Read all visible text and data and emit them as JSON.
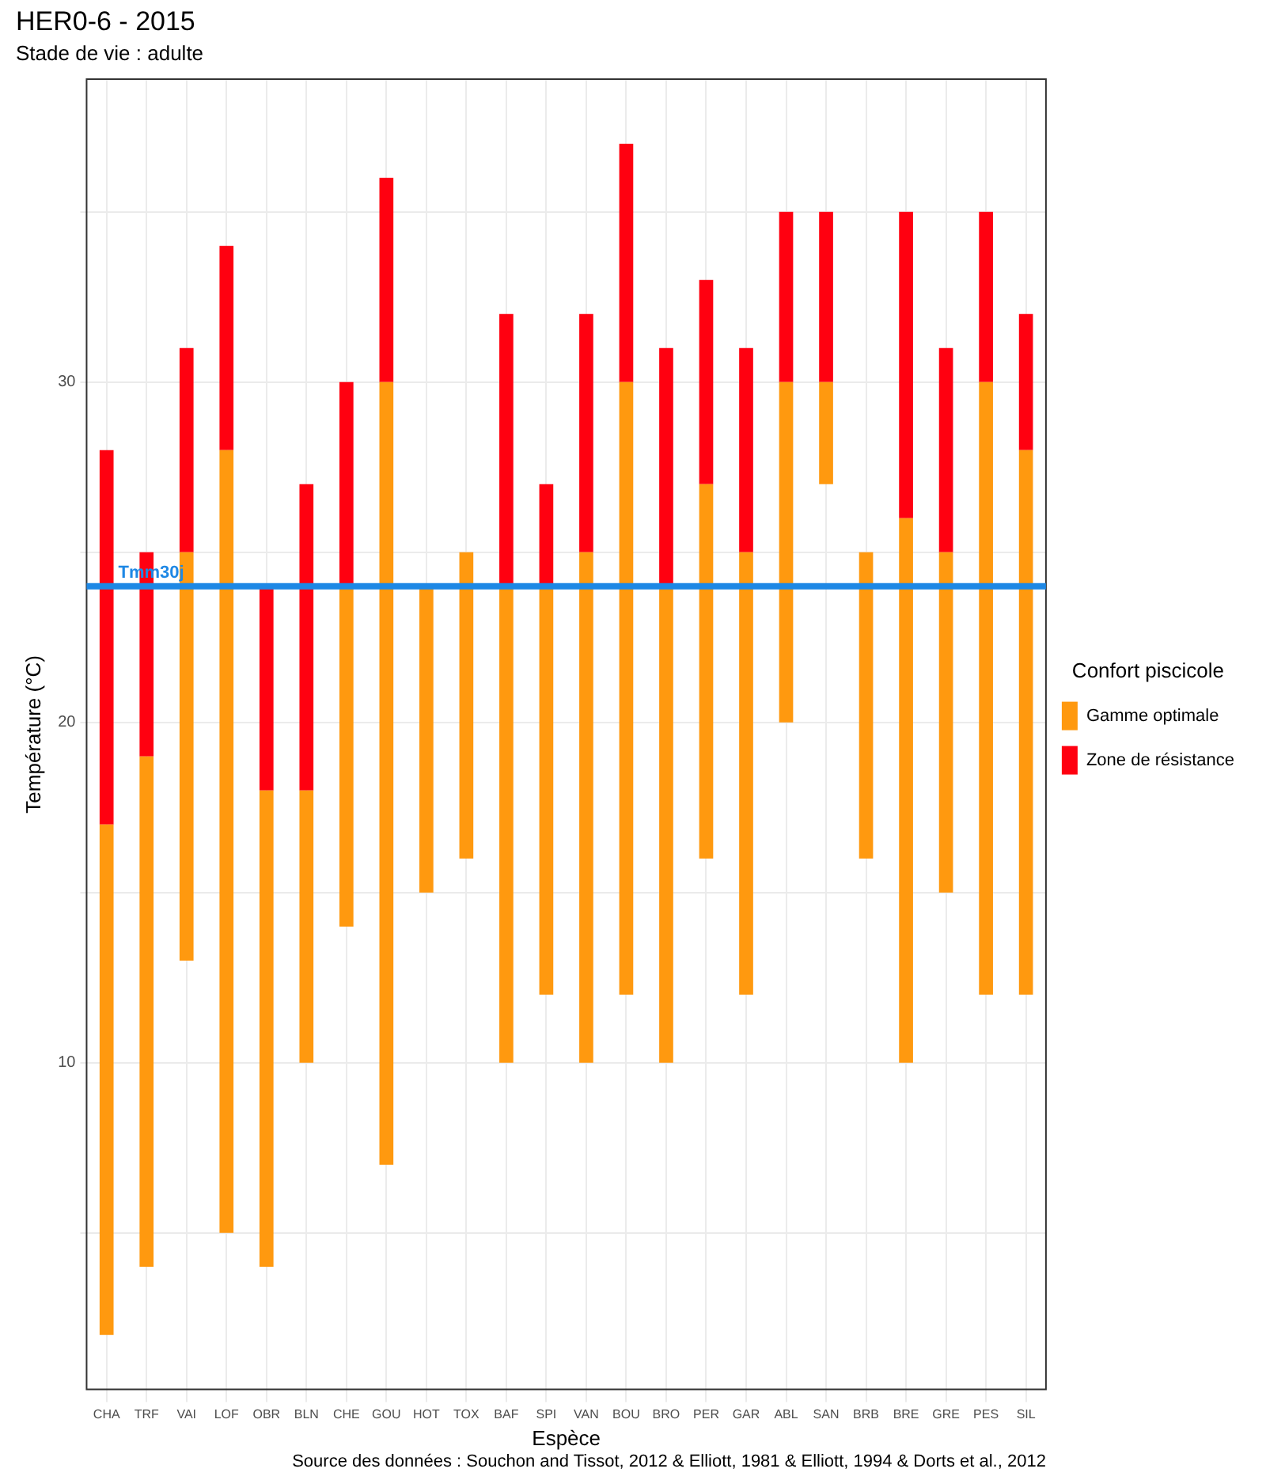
{
  "chart_data": {
    "type": "bar",
    "title": "HER0-6 - 2015",
    "subtitle": "Stade de vie : adulte",
    "xlabel": "Espèce",
    "ylabel": "Température (°C)",
    "legend_title": "Confort piscicole",
    "categories": [
      "CHA",
      "TRF",
      "VAI",
      "LOF",
      "OBR",
      "BLN",
      "CHE",
      "GOU",
      "HOT",
      "TOX",
      "BAF",
      "SPI",
      "VAN",
      "BOU",
      "BRO",
      "PER",
      "GAR",
      "ABL",
      "SAN",
      "BRB",
      "BRE",
      "GRE",
      "PES",
      "SIL"
    ],
    "series": [
      {
        "name": "Gamme optimale",
        "color": "#ff990f",
        "base": [
          2,
          4,
          13,
          5,
          4,
          10,
          14,
          7,
          15,
          16,
          10,
          12,
          10,
          12,
          10,
          16,
          12,
          20,
          27,
          16,
          10,
          15,
          12,
          12
        ],
        "values": [
          15,
          15,
          12,
          23,
          14,
          8,
          10,
          23,
          9,
          9,
          14,
          12,
          15,
          18,
          14,
          11,
          13,
          10,
          3,
          9,
          16,
          10,
          18,
          16
        ]
      },
      {
        "name": "Zone de résistance",
        "color": "#ff0010",
        "base": [
          17,
          19,
          25,
          28,
          18,
          18,
          24,
          30,
          null,
          null,
          24,
          24,
          25,
          30,
          24,
          27,
          25,
          30,
          30,
          null,
          26,
          25,
          30,
          28
        ],
        "values": [
          11,
          6,
          6,
          6,
          6,
          9,
          6,
          6,
          null,
          null,
          8,
          3,
          7,
          7,
          7,
          6,
          6,
          5,
          5,
          null,
          9,
          6,
          5,
          4
        ]
      }
    ],
    "ylim": [
      0.4,
      38.9
    ],
    "yticks": [
      {
        "value": 5,
        "label": null
      },
      10,
      {
        "value": 15,
        "label": null
      },
      20,
      {
        "value": 25,
        "label": null
      },
      30,
      {
        "value": 35,
        "label": null
      }
    ],
    "grid": true,
    "legend": "right",
    "ref_lines": [
      {
        "axis": "y",
        "value": 24,
        "label": "Tmm30j",
        "color": "#1e88e5"
      }
    ],
    "annotations": [
      "Source des données : Souchon and Tissot, 2012 & Elliott, 1981 & Elliott, 1994 & Dorts et al., 2012"
    ]
  }
}
